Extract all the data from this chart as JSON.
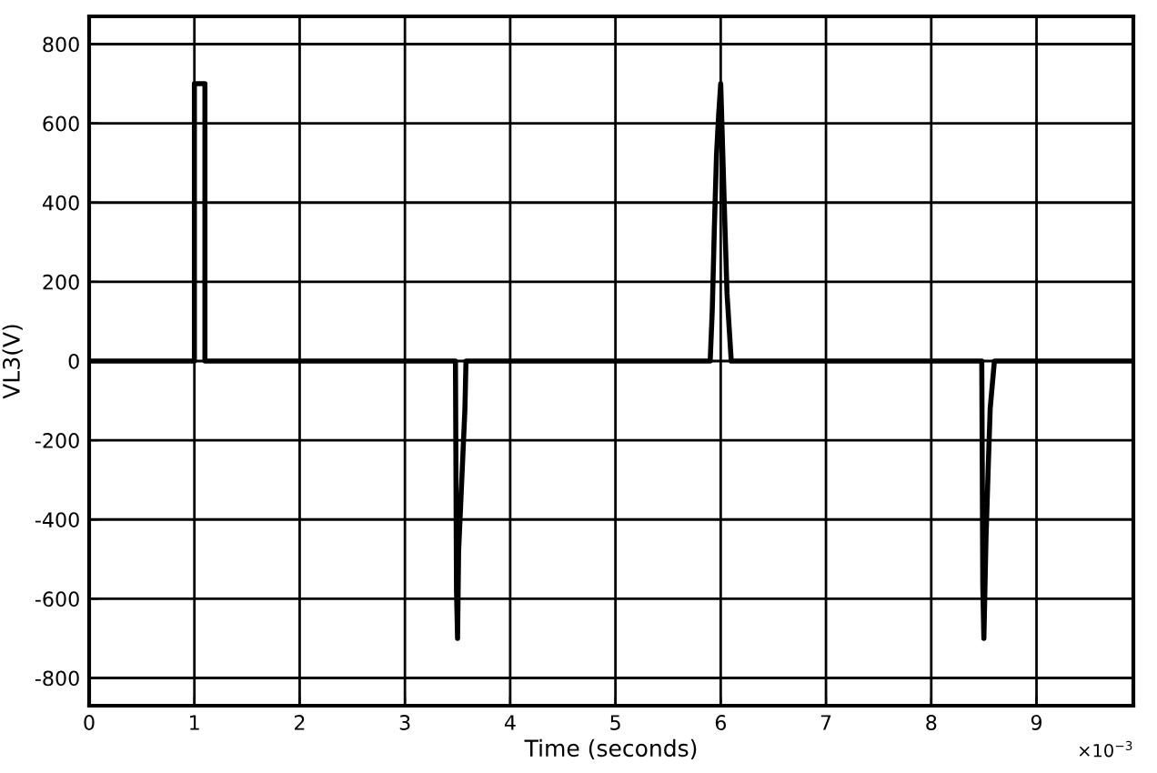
{
  "chart_data": {
    "type": "line",
    "xlabel": "Time (seconds)",
    "ylabel": "VL3(V)",
    "annotations": [
      "×10$^{−3}$"
    ],
    "series": [
      {
        "color": "#000000",
        "x": [
          0,
          1.0,
          1.0,
          1.1,
          1.1,
          3.48,
          3.49,
          3.5,
          3.51,
          3.53,
          3.55,
          3.57,
          3.58,
          5.9,
          5.92,
          5.94,
          5.96,
          5.98,
          6.0,
          6.02,
          6.04,
          6.06,
          6.1,
          8.48,
          8.49,
          8.5,
          8.52,
          8.54,
          8.56,
          8.6,
          9.92
        ],
        "values": [
          0,
          0,
          700,
          700,
          0,
          0,
          -580,
          -700,
          -480,
          -360,
          -240,
          -120,
          0,
          0,
          130,
          340,
          520,
          620,
          700,
          520,
          340,
          170,
          0,
          0,
          -570,
          -700,
          -450,
          -280,
          -120,
          0,
          0
        ]
      }
    ],
    "xlim": [
      0,
      9.92
    ],
    "xticks": [
      0,
      1,
      2,
      3,
      4,
      5,
      6,
      7,
      8,
      9
    ],
    "ylim": [
      -870,
      870
    ],
    "yticks": [
      -800,
      -600,
      -400,
      -200,
      0,
      200,
      400,
      600,
      800
    ],
    "grid": true,
    "marker": "none",
    "line_style": "solid"
  }
}
